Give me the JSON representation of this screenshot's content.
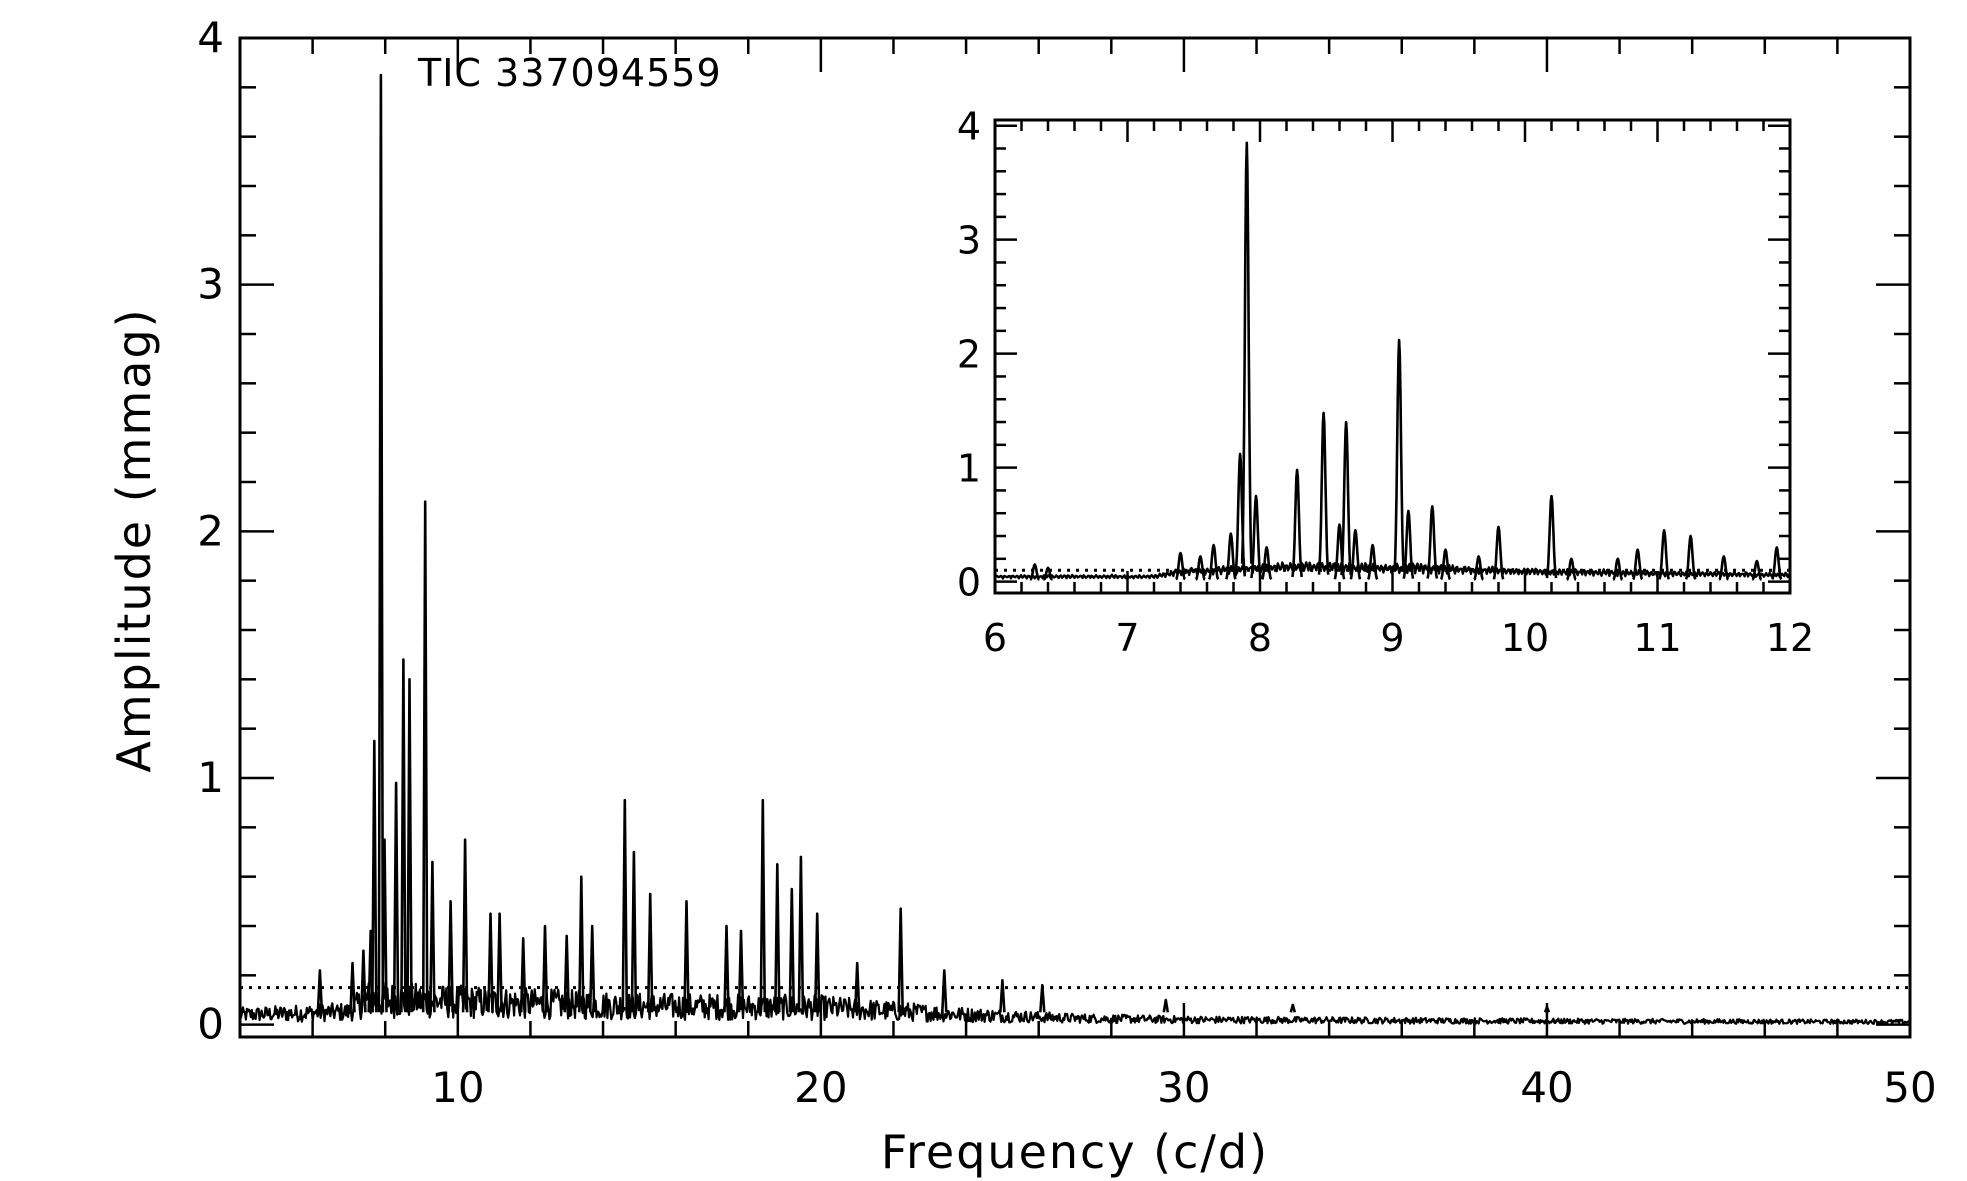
{
  "chart_data": [
    {
      "type": "line",
      "panel": "main",
      "annotation": "TIC 337094559",
      "xlabel": "Frequency (c/d)",
      "ylabel": "Amplitude (mmag)",
      "xlim": [
        4,
        50
      ],
      "ylim": [
        -0.05,
        4.0
      ],
      "xticks": [
        10,
        20,
        30,
        40,
        50
      ],
      "yticks": [
        0,
        1,
        2,
        3,
        4
      ],
      "grid": false,
      "colors": {
        "line": "#000000",
        "background": "#ffffff"
      },
      "threshold": {
        "y": 0.15,
        "style": "dotted"
      },
      "peaks": [
        [
          6.2,
          0.22
        ],
        [
          7.1,
          0.25
        ],
        [
          7.4,
          0.3
        ],
        [
          7.6,
          0.38
        ],
        [
          7.7,
          1.15
        ],
        [
          7.88,
          3.85
        ],
        [
          7.98,
          0.75
        ],
        [
          8.3,
          0.98
        ],
        [
          8.5,
          1.48
        ],
        [
          8.67,
          1.4
        ],
        [
          9.1,
          2.12
        ],
        [
          9.3,
          0.66
        ],
        [
          9.8,
          0.5
        ],
        [
          10.2,
          0.75
        ],
        [
          10.9,
          0.45
        ],
        [
          11.15,
          0.45
        ],
        [
          11.8,
          0.35
        ],
        [
          12.4,
          0.4
        ],
        [
          13.0,
          0.36
        ],
        [
          13.4,
          0.6
        ],
        [
          13.7,
          0.4
        ],
        [
          14.6,
          0.91
        ],
        [
          14.85,
          0.7
        ],
        [
          15.3,
          0.53
        ],
        [
          16.3,
          0.5
        ],
        [
          17.4,
          0.4
        ],
        [
          17.8,
          0.38
        ],
        [
          18.4,
          0.91
        ],
        [
          18.8,
          0.65
        ],
        [
          19.2,
          0.55
        ],
        [
          19.45,
          0.68
        ],
        [
          19.9,
          0.45
        ],
        [
          21.0,
          0.25
        ],
        [
          22.2,
          0.47
        ],
        [
          23.4,
          0.22
        ],
        [
          25.0,
          0.18
        ],
        [
          26.1,
          0.16
        ],
        [
          29.5,
          0.1
        ],
        [
          33.0,
          0.08
        ],
        [
          40.0,
          0.07
        ]
      ],
      "noise": [
        [
          4,
          0.07
        ],
        [
          7,
          0.09
        ],
        [
          7.5,
          0.18
        ],
        [
          10,
          0.16
        ],
        [
          15,
          0.13
        ],
        [
          20,
          0.12
        ],
        [
          24,
          0.07
        ],
        [
          27,
          0.045
        ],
        [
          30,
          0.035
        ],
        [
          40,
          0.025
        ],
        [
          50,
          0.02
        ]
      ]
    },
    {
      "type": "line",
      "panel": "inset",
      "xlim": [
        6,
        12
      ],
      "ylim": [
        -0.1,
        4.05
      ],
      "xticks": [
        6,
        7,
        8,
        9,
        10,
        11,
        12
      ],
      "yticks": [
        0,
        1,
        2,
        3,
        4
      ],
      "threshold": {
        "y": 0.1,
        "style": "dotted"
      },
      "peaks": [
        [
          6.3,
          0.15
        ],
        [
          6.4,
          0.12
        ],
        [
          7.4,
          0.25
        ],
        [
          7.55,
          0.22
        ],
        [
          7.65,
          0.32
        ],
        [
          7.78,
          0.42
        ],
        [
          7.85,
          1.12
        ],
        [
          7.9,
          3.85
        ],
        [
          7.97,
          0.75
        ],
        [
          8.05,
          0.3
        ],
        [
          8.28,
          0.98
        ],
        [
          8.48,
          1.48
        ],
        [
          8.6,
          0.5
        ],
        [
          8.65,
          1.4
        ],
        [
          8.72,
          0.45
        ],
        [
          8.85,
          0.32
        ],
        [
          9.05,
          2.12
        ],
        [
          9.12,
          0.62
        ],
        [
          9.3,
          0.66
        ],
        [
          9.4,
          0.28
        ],
        [
          9.65,
          0.22
        ],
        [
          9.8,
          0.48
        ],
        [
          10.2,
          0.75
        ],
        [
          10.35,
          0.2
        ],
        [
          10.7,
          0.2
        ],
        [
          10.85,
          0.28
        ],
        [
          11.05,
          0.45
        ],
        [
          11.25,
          0.4
        ],
        [
          11.5,
          0.22
        ],
        [
          11.75,
          0.18
        ],
        [
          11.9,
          0.3
        ]
      ],
      "noise": [
        [
          6,
          0.06
        ],
        [
          7.2,
          0.06
        ],
        [
          7.4,
          0.12
        ],
        [
          8.2,
          0.18
        ],
        [
          9.2,
          0.16
        ],
        [
          10,
          0.12
        ],
        [
          12,
          0.08
        ]
      ]
    }
  ]
}
